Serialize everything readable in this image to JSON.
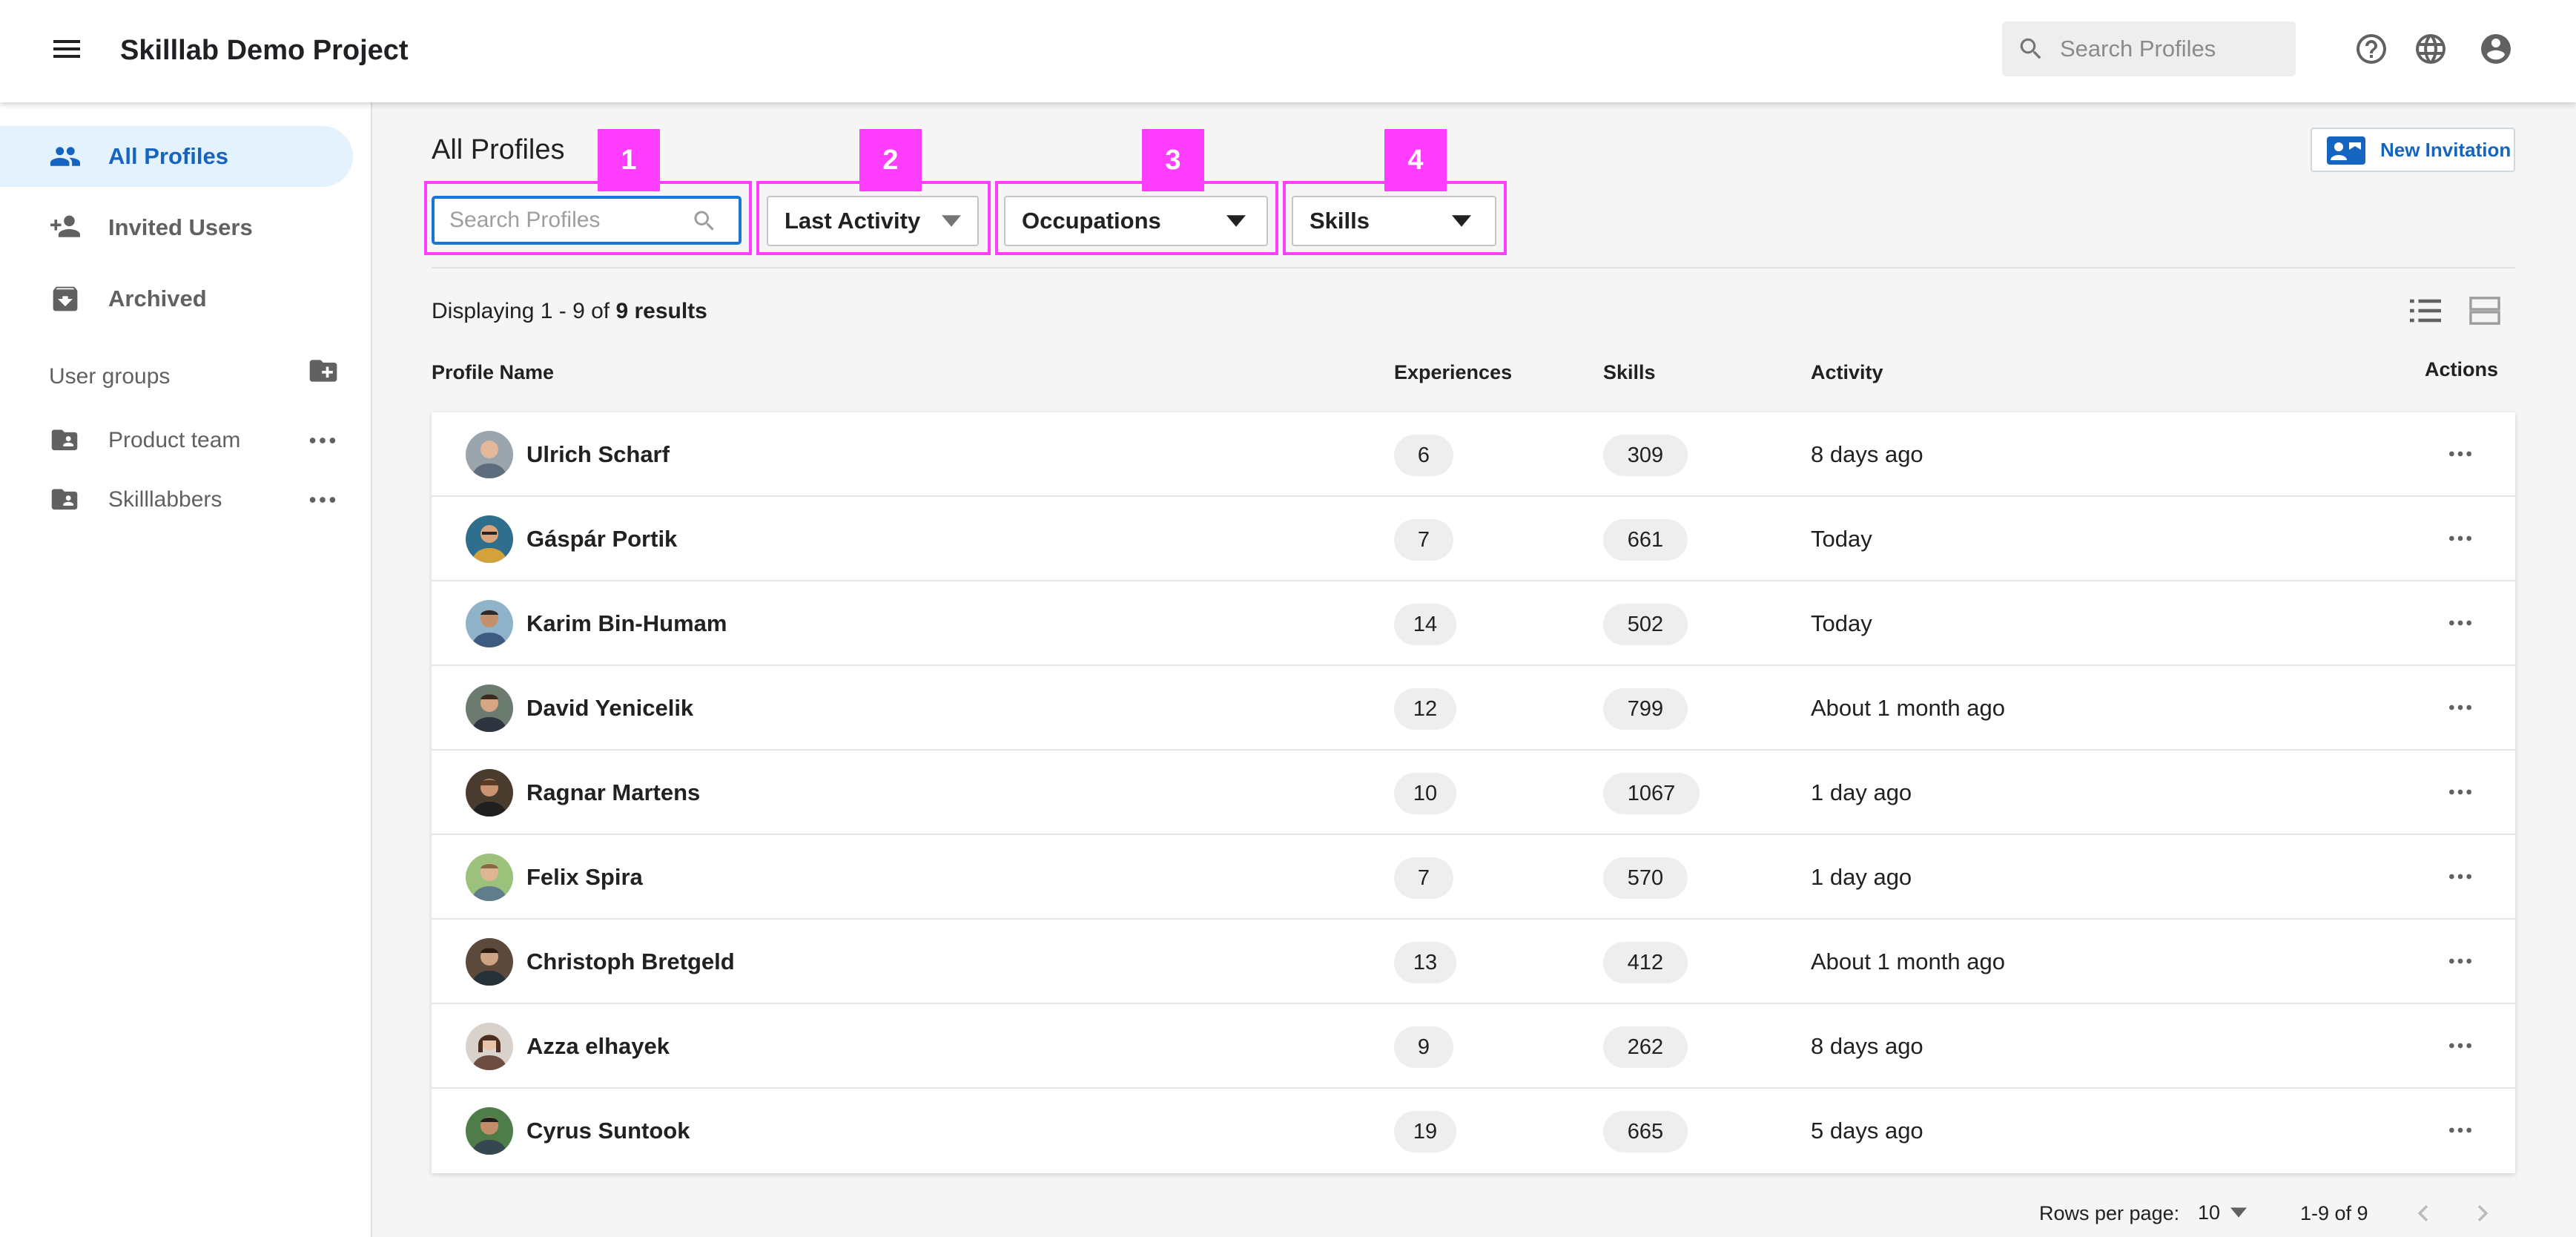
{
  "header": {
    "title": "Skilllab Demo Project",
    "search_placeholder": "Search Profiles",
    "icons": [
      "menu-icon",
      "search-icon",
      "help-icon",
      "globe-icon",
      "account-icon"
    ]
  },
  "sidebar": {
    "items": [
      {
        "label": "All Profiles",
        "icon": "people-icon",
        "active": true
      },
      {
        "label": "Invited Users",
        "icon": "person-add-icon",
        "active": false
      },
      {
        "label": "Archived",
        "icon": "archive-icon",
        "active": false
      }
    ],
    "groups_heading": "User groups",
    "groups": [
      {
        "label": "Product team",
        "icon": "folder-shared-icon"
      },
      {
        "label": "Skilllabbers",
        "icon": "folder-shared-icon"
      }
    ]
  },
  "main": {
    "title": "All Profiles",
    "new_invitation_label": "New Invitation",
    "filters": {
      "search_placeholder": "Search Profiles",
      "sort_label": "Last Activity",
      "occupations_label": "Occupations",
      "skills_label": "Skills"
    },
    "badges": [
      "1",
      "2",
      "3",
      "4"
    ],
    "results": {
      "prefix": "Displaying 1 - 9 of ",
      "bold": "9 results"
    },
    "columns": {
      "name": "Profile Name",
      "experiences": "Experiences",
      "skills": "Skills",
      "activity": "Activity",
      "actions": "Actions"
    },
    "rows": [
      {
        "name": "Ulrich Scharf",
        "experiences": "6",
        "skills": "309",
        "activity": "8 days ago"
      },
      {
        "name": "Gáspár Portik",
        "experiences": "7",
        "skills": "661",
        "activity": "Today"
      },
      {
        "name": "Karim Bin-Humam",
        "experiences": "14",
        "skills": "502",
        "activity": "Today"
      },
      {
        "name": "David Yenicelik",
        "experiences": "12",
        "skills": "799",
        "activity": "About 1 month ago"
      },
      {
        "name": "Ragnar Martens",
        "experiences": "10",
        "skills": "1067",
        "activity": "1 day ago"
      },
      {
        "name": "Felix Spira",
        "experiences": "7",
        "skills": "570",
        "activity": "1 day ago"
      },
      {
        "name": "Christoph Bretgeld",
        "experiences": "13",
        "skills": "412",
        "activity": "About 1 month ago"
      },
      {
        "name": "Azza elhayek",
        "experiences": "9",
        "skills": "262",
        "activity": "8 days ago"
      },
      {
        "name": "Cyrus Suntook",
        "experiences": "19",
        "skills": "665",
        "activity": "5 days ago"
      }
    ],
    "pagination": {
      "rows_per_page_label": "Rows per page:",
      "rows_per_page_value": "10",
      "range": "1-9 of 9"
    }
  },
  "colors": {
    "accent": "#1565c0",
    "active_bg": "#e3f2fd",
    "callout": "#ff3dff",
    "pill_bg": "#eeeeee",
    "icon_gray": "#616161"
  }
}
